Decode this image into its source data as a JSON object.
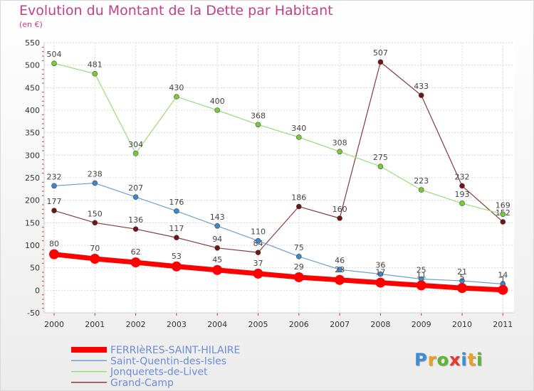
{
  "header": {
    "title": "Evolution du Montant de la Dette par Habitant",
    "subtitle": "(en €)"
  },
  "logo": {
    "text": "Proxiti"
  },
  "chart_data": {
    "type": "line",
    "title": "Evolution du Montant de la Dette par Habitant",
    "ylabel": "(en €)",
    "xlabel": "",
    "x": [
      "2000",
      "2001",
      "2002",
      "2003",
      "2004",
      "2005",
      "2006",
      "2007",
      "2008",
      "2009",
      "2010",
      "2011"
    ],
    "ylim": [
      -50,
      550
    ],
    "yticks": [
      -50,
      0,
      50,
      100,
      150,
      200,
      250,
      300,
      350,
      400,
      450,
      500,
      550
    ],
    "grid": true,
    "legend_position": "bottom",
    "series": [
      {
        "name": "FERRIèRES-SAINT-HILAIRE",
        "color": "#ff0000",
        "point_color": "#ff0000",
        "values": [
          80,
          70,
          62,
          53,
          45,
          37,
          29,
          23,
          17,
          11,
          5,
          1
        ],
        "label_text": [
          "80",
          "70",
          "62",
          "53",
          "45",
          "37",
          "29",
          "23",
          "17",
          "11",
          "5",
          "1"
        ],
        "width": 7,
        "marker": 7
      },
      {
        "name": "Saint-Quentin-des-Isles",
        "color": "#6e9fd0",
        "point_color": "#3a88cf",
        "values": [
          232,
          238,
          207,
          176,
          143,
          110,
          75,
          46,
          36,
          25,
          21,
          14
        ],
        "label_text": [
          "232",
          "238",
          "207",
          "176",
          "143",
          "110",
          "75",
          "46",
          "36",
          "25",
          "21",
          "14"
        ],
        "width": 1.2,
        "marker": 3.5
      },
      {
        "name": "Jonquerets-de-Livet",
        "color": "#99dd77",
        "point_color": "#77cc33",
        "values": [
          504,
          481,
          304,
          430,
          400,
          368,
          340,
          308,
          275,
          223,
          193,
          169
        ],
        "label_text": [
          "504",
          "481",
          "304",
          "430",
          "400",
          "368",
          "340",
          "308",
          "275",
          "223",
          "193",
          "169"
        ],
        "width": 1.2,
        "marker": 3.5
      },
      {
        "name": "Grand-Camp",
        "color": "#8a3a3a",
        "point_color": "#6e1515",
        "values": [
          177,
          150,
          136,
          117,
          94,
          84,
          186,
          160,
          507,
          433,
          232,
          152
        ],
        "label_text": [
          "177",
          "150",
          "136",
          "117",
          "94",
          "84",
          "186",
          "160",
          "507",
          "433",
          "232",
          "152"
        ],
        "width": 1.2,
        "marker": 3.5
      }
    ]
  }
}
